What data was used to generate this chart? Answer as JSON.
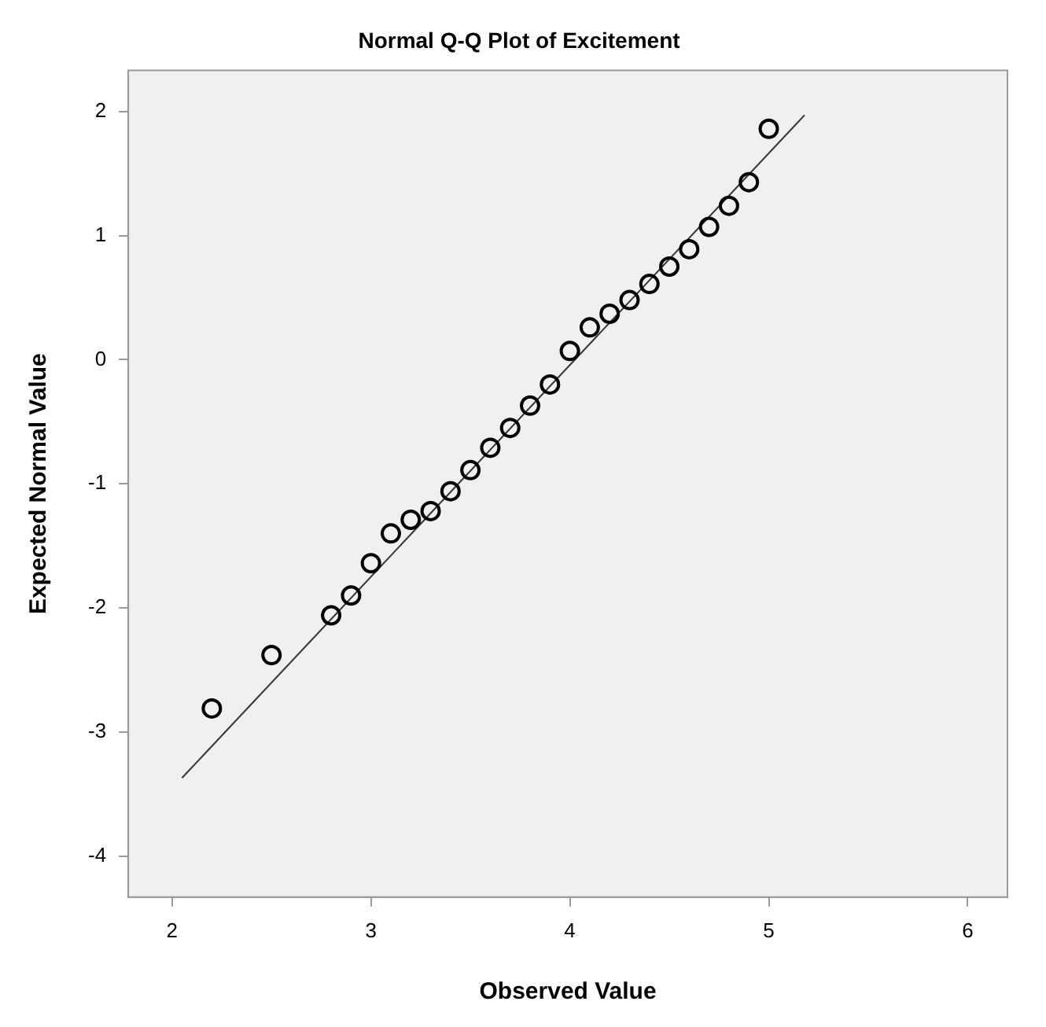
{
  "chart_data": {
    "type": "scatter",
    "title": "Normal Q-Q Plot of Excitement",
    "xlabel": "Observed Value",
    "ylabel": "Expected Normal Value",
    "grid": false,
    "legend": false,
    "xlim": [
      1.78,
      6.2
    ],
    "xticks": [
      2,
      3,
      4,
      5,
      6
    ],
    "ylim": [
      -4.33,
      2.33
    ],
    "yticks": [
      -4,
      -3,
      -2,
      -1,
      0,
      1,
      2
    ],
    "series": [
      {
        "marker": "circle",
        "color": "#000000",
        "x": [
          2.2,
          2.5,
          2.8,
          2.9,
          3.0,
          3.1,
          3.2,
          3.3,
          3.4,
          3.5,
          3.6,
          3.7,
          3.8,
          3.9,
          4.0,
          4.1,
          4.2,
          4.3,
          4.4,
          4.5,
          4.6,
          4.7,
          4.8,
          4.9,
          5.0
        ],
        "values": [
          -2.81,
          -2.38,
          -2.06,
          -1.9,
          -1.64,
          -1.4,
          -1.29,
          -1.22,
          -1.06,
          -0.89,
          -0.71,
          -0.55,
          -0.37,
          -0.2,
          0.07,
          0.26,
          0.37,
          0.48,
          0.61,
          0.75,
          0.89,
          1.07,
          1.24,
          1.43,
          1.86
        ]
      },
      {
        "type": "line",
        "marker": "none",
        "color": "#333333",
        "x": [
          2.05,
          5.18
        ],
        "values": [
          -3.37,
          1.97
        ]
      }
    ]
  }
}
